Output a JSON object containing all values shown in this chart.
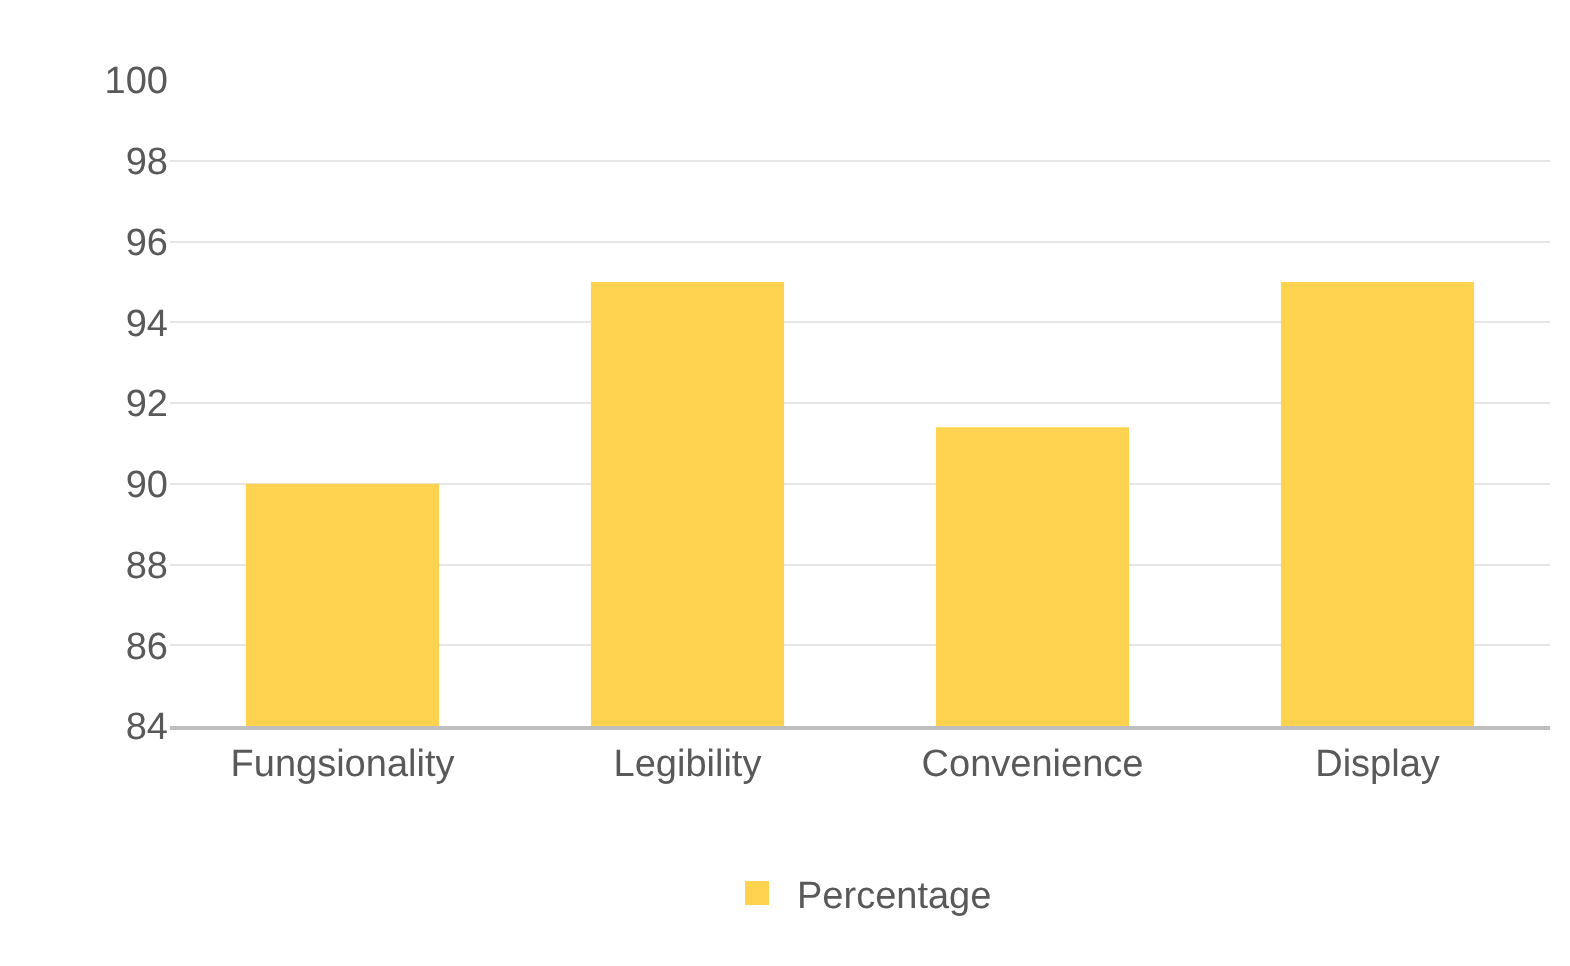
{
  "chart_data": {
    "type": "bar",
    "categories": [
      "Fungsionality",
      "Legibility",
      "Convenience",
      "Display"
    ],
    "series": [
      {
        "name": "Percentage",
        "color": "#ffd24f",
        "values": [
          90,
          95,
          91.4,
          95
        ]
      }
    ],
    "ylim": [
      84,
      100
    ],
    "yticks": [
      84,
      86,
      88,
      90,
      92,
      94,
      96,
      98,
      100
    ],
    "grid": "y",
    "legend": "bottom"
  }
}
